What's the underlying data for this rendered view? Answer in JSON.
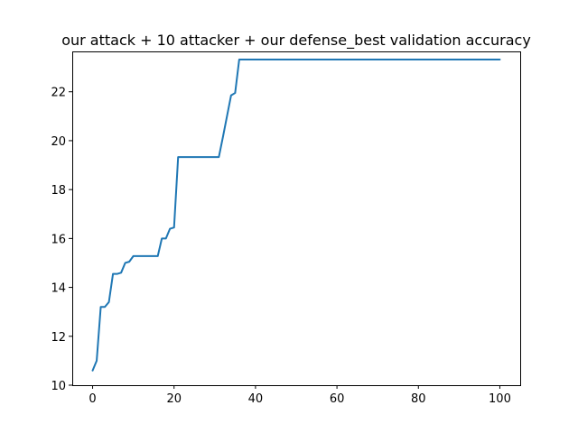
{
  "chart_data": {
    "type": "line",
    "title": "our attack + 10 attacker + our defense_best validation accuracy",
    "xlabel": "",
    "ylabel": "",
    "xlim": [
      -5,
      105
    ],
    "ylim": [
      10,
      23.65
    ],
    "xticks": [
      0,
      20,
      40,
      60,
      80,
      100
    ],
    "yticks": [
      10,
      12,
      14,
      16,
      18,
      20,
      22
    ],
    "grid": false,
    "line_color": "#1f77b4",
    "series": [
      {
        "x": [
          0,
          1,
          2,
          3,
          4,
          5,
          6,
          7,
          8,
          9,
          10,
          11,
          12,
          13,
          14,
          15,
          16,
          17,
          18,
          19,
          20,
          21,
          22,
          23,
          24,
          25,
          26,
          27,
          28,
          29,
          30,
          31,
          32,
          33,
          34,
          35,
          36,
          37,
          40,
          50,
          60,
          70,
          80,
          90,
          100
        ],
        "values": [
          10.6,
          11.0,
          13.2,
          13.2,
          13.4,
          14.55,
          14.55,
          14.6,
          15.0,
          15.05,
          15.28,
          15.28,
          15.28,
          15.28,
          15.28,
          15.28,
          15.28,
          16.0,
          16.0,
          16.4,
          16.45,
          19.33,
          19.33,
          19.33,
          19.33,
          19.33,
          19.33,
          19.33,
          19.33,
          19.33,
          19.33,
          19.33,
          20.15,
          21.0,
          21.85,
          21.95,
          23.32,
          23.32,
          23.32,
          23.32,
          23.32,
          23.32,
          23.32,
          23.32,
          23.32
        ]
      }
    ]
  }
}
